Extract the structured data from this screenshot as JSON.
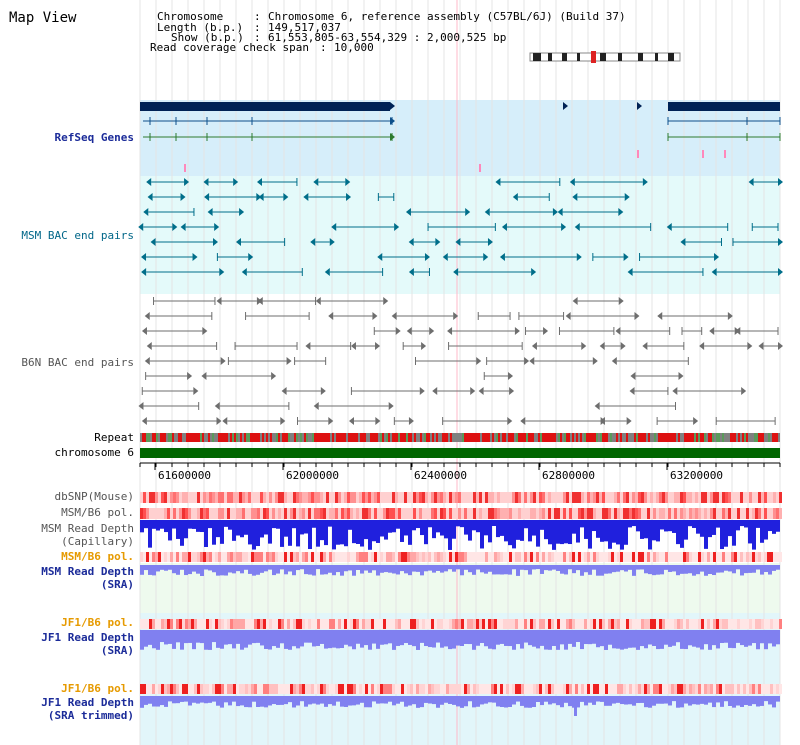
{
  "title": "Map View",
  "info": {
    "chromosome_key": "Chromosome",
    "chromosome_val": "Chromosome 6, reference assembly (C57BL/6J) (Build 37)",
    "length_key": "Length (b.p.)",
    "length_val": "149,517,037",
    "show_key": "Show (b.p.)",
    "show_val": "61,553,805-63,554,329 : 2,000,525 bp",
    "coverage_key": "Read coverage check span",
    "coverage_val": "10,000"
  },
  "tracks": {
    "refseq": "RefSeq Genes",
    "msm_bac": "MSM BAC end pairs",
    "b6n_bac": "B6N BAC end pairs",
    "repeat": "Repeat",
    "chromosome": "chromosome 6",
    "dbsnp": "dbSNP(Mouse)",
    "msm_b6_pol": "MSM/B6 pol.",
    "msm_depth_cap_1": "MSM Read Depth",
    "msm_depth_cap_2": "(Capillary)",
    "msm_b6_pol_sra": "MSM/B6 pol.",
    "msm_depth_sra_1": "MSM Read Depth",
    "msm_depth_sra_2": "(SRA)",
    "jf1_b6_pol": "JF1/B6 pol.",
    "jf1_depth_1": "JF1 Read Depth",
    "jf1_depth_2": "(SRA)",
    "jf1_b6_pol_t": "JF1/B6 pol.",
    "jf1_depth_t_1": "JF1 Read Depth",
    "jf1_depth_t_2": "(SRA trimmed)"
  },
  "axis": {
    "ticks": [
      "61600000",
      "62000000",
      "62400000",
      "62800000",
      "63200000"
    ]
  },
  "colors": {
    "navy": "#1b2b99",
    "teal": "#006688",
    "depth_blue": "#2020dd",
    "depth_lavender": "#8080f0",
    "chrom_green": "#006600"
  }
}
